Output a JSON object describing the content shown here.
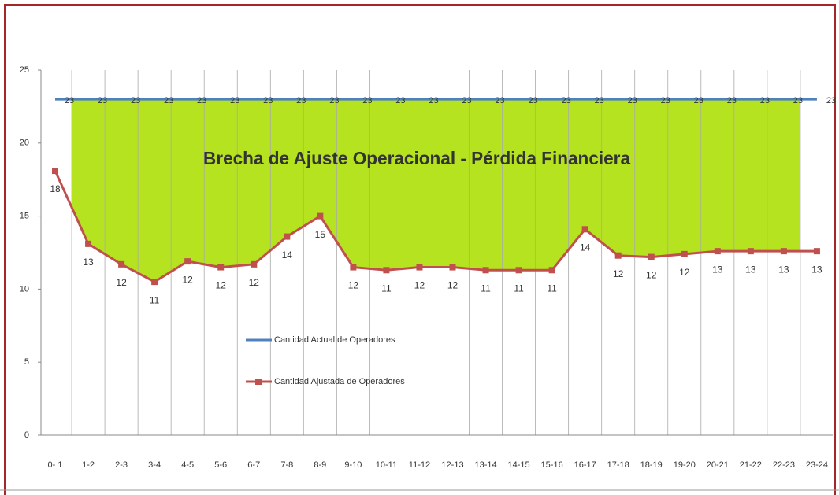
{
  "chart_data": {
    "type": "line",
    "annotation": "Brecha de Ajuste Operacional - Pérdida Financiera",
    "categories": [
      "0- 1",
      "1-2",
      "2-3",
      "3-4",
      "4-5",
      "5-6",
      "6-7",
      "7-8",
      "8-9",
      "9-10",
      "10-11",
      "11-12",
      "12-13",
      "13-14",
      "14-15",
      "15-16",
      "16-17",
      "17-18",
      "18-19",
      "19-20",
      "20-21",
      "21-22",
      "22-23",
      "23-24"
    ],
    "series": [
      {
        "name": "Cantidad Actual de Operadores",
        "color": "#4f81bd",
        "values": [
          23,
          23,
          23,
          23,
          23,
          23,
          23,
          23,
          23,
          23,
          23,
          23,
          23,
          23,
          23,
          23,
          23,
          23,
          23,
          23,
          23,
          23,
          23,
          23
        ]
      },
      {
        "name": "Cantidad Ajustada de Operadores",
        "color": "#c0504d",
        "marker": "square",
        "values": [
          18.1,
          13.1,
          11.7,
          10.5,
          11.9,
          11.5,
          11.7,
          13.6,
          15,
          11.5,
          11.3,
          11.5,
          11.5,
          11.3,
          11.3,
          11.3,
          14.1,
          12.3,
          12.2,
          12.4,
          12.6,
          12.6,
          12.6,
          12.6
        ],
        "value_labels": [
          "18",
          "13",
          "12",
          "11",
          "12",
          "12",
          "12",
          "14",
          "15",
          "12",
          "11",
          "12",
          "12",
          "11",
          "11",
          "11",
          "14",
          "12",
          "12",
          "12",
          "13",
          "13",
          "13",
          "13"
        ]
      }
    ],
    "fill_color": "#b5e31f",
    "ylim": [
      0,
      25
    ],
    "yticks": [
      0,
      5,
      10,
      15,
      20,
      25
    ],
    "grid": true,
    "legend": "left"
  }
}
